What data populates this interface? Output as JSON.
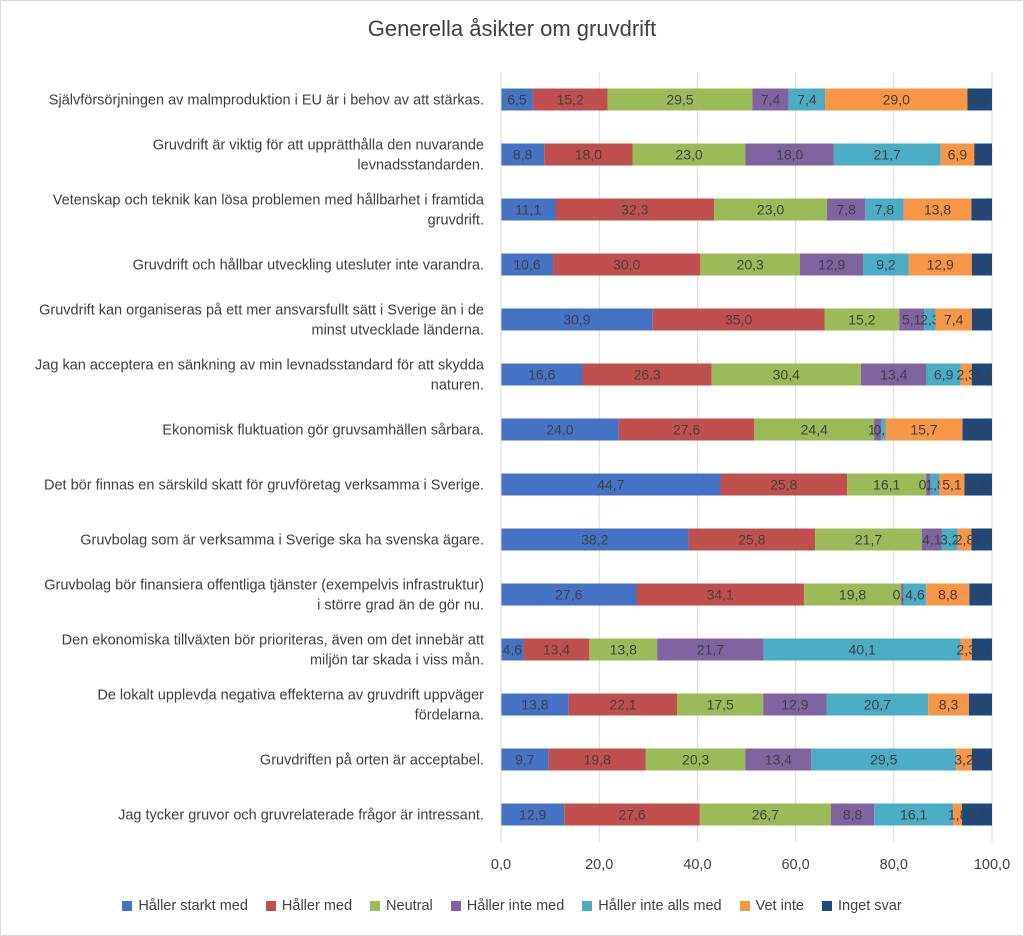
{
  "chart_data": {
    "type": "bar",
    "orientation": "horizontal",
    "stacked": true,
    "title": "Generella åsikter om gruvdrift",
    "xlim": [
      0,
      100
    ],
    "x_ticks": [
      "0,0",
      "20,0",
      "40,0",
      "60,0",
      "80,0",
      "100,0"
    ],
    "gridlines": true,
    "legend_position": "bottom",
    "categories": [
      [
        "Självförsörjningen av malmproduktion i EU är i behov av att stärkas."
      ],
      [
        "Gruvdrift är viktig för att upprätthålla den nuvarande",
        "levnadsstandarden."
      ],
      [
        "Vetenskap och teknik kan lösa problemen med hållbarhet i framtida",
        "gruvdrift."
      ],
      [
        "Gruvdrift och hållbar utveckling utesluter inte varandra."
      ],
      [
        "Gruvdrift kan organiseras på ett mer ansvarsfullt sätt i Sverige än i de",
        "minst utvecklade länderna."
      ],
      [
        "Jag kan acceptera en sänkning av min levnadsstandard för att skydda",
        "naturen."
      ],
      [
        "Ekonomisk fluktuation gör gruvsamhällen sårbara."
      ],
      [
        "Det bör finnas en särskild skatt för gruvföretag verksamma i Sverige."
      ],
      [
        "Gruvbolag som är verksamma i Sverige ska ha svenska ägare."
      ],
      [
        "Gruvbolag bör finansiera offentliga tjänster (exempelvis infrastruktur)",
        "i större grad än de gör nu."
      ],
      [
        "Den ekonomiska tillväxten bör prioriteras, även om det innebär att",
        "miljön tar skada i viss mån."
      ],
      [
        "De lokalt upplevda negativa effekterna av gruvdrift uppväger",
        "fördelarna."
      ],
      [
        "Gruvdriften på orten är acceptabel."
      ],
      [
        "Jag tycker gruvor och gruvrelaterade frågor är intressant."
      ]
    ],
    "series": [
      {
        "name": "Håller starkt med",
        "color": "#4472C4",
        "values": [
          6.5,
          8.8,
          11.1,
          10.6,
          30.9,
          16.6,
          24.0,
          44.7,
          38.2,
          27.6,
          4.6,
          13.8,
          9.7,
          12.9
        ],
        "labels": [
          "6,5",
          "8,8",
          "11,1",
          "10,6",
          "30,9",
          "16,6",
          "24,0",
          "44,7",
          "38,2",
          "27,6",
          "4,6",
          "13,8",
          "9,7",
          "12,9"
        ]
      },
      {
        "name": "Håller med",
        "color": "#C0504D",
        "values": [
          15.2,
          18.0,
          32.3,
          30.0,
          35.0,
          26.3,
          27.6,
          25.8,
          25.8,
          34.1,
          13.4,
          22.1,
          19.8,
          27.6
        ],
        "labels": [
          "15,2",
          "18,0",
          "32,3",
          "30,0",
          "35,0",
          "26,3",
          "27,6",
          "25,8",
          "25,8",
          "34,1",
          "13,4",
          "22,1",
          "19,8",
          "27,6"
        ]
      },
      {
        "name": "Neutral",
        "color": "#9BBB59",
        "values": [
          29.5,
          23.0,
          23.0,
          20.3,
          15.2,
          30.4,
          24.4,
          16.1,
          21.7,
          19.8,
          13.8,
          17.5,
          20.3,
          26.7
        ],
        "labels": [
          "29,5",
          "23,0",
          "23,0",
          "20,3",
          "15,2",
          "30,4",
          "24,4",
          "16,1",
          "21,7",
          "19,8",
          "13,8",
          "17,5",
          "20,3",
          "26,7"
        ]
      },
      {
        "name": "Håller inte med",
        "color": "#8064A2",
        "values": [
          7.4,
          18.0,
          7.8,
          12.9,
          5.1,
          13.4,
          1.4,
          0.9,
          4.1,
          0.5,
          21.7,
          12.9,
          13.4,
          8.8
        ],
        "labels": [
          "7,4",
          "18,0",
          "7,8",
          "12,9",
          "5,1",
          "13,4",
          "1,4",
          "0,9",
          "4,1",
          "0,5",
          "21,7",
          "12,9",
          "13,4",
          "8,8"
        ]
      },
      {
        "name": "Håller inte alls med",
        "color": "#4BACC6",
        "values": [
          7.4,
          21.7,
          7.8,
          9.2,
          2.3,
          6.9,
          0.9,
          1.8,
          3.2,
          4.6,
          40.1,
          20.7,
          29.5,
          16.1
        ],
        "labels": [
          "7,4",
          "21,7",
          "7,8",
          "9,2",
          "2,3",
          "6,9",
          "0,9",
          "1,8",
          "3,2",
          "4,6",
          "40,1",
          "20,7",
          "29,5",
          "16,1"
        ]
      },
      {
        "name": "Vet inte",
        "color": "#F79646",
        "values": [
          29.0,
          6.9,
          13.8,
          12.9,
          7.4,
          2.3,
          15.7,
          5.1,
          2.8,
          8.8,
          2.3,
          8.3,
          3.2,
          1.8
        ],
        "labels": [
          "29,0",
          "6,9",
          "13,8",
          "12,9",
          "7,4",
          "2,3",
          "15,7",
          "5,1",
          "2,8",
          "8,8",
          "2,3",
          "8,3",
          "3,2",
          "1,8"
        ]
      },
      {
        "name": "Inget svar",
        "color": "#1F497D",
        "values": [
          5.1,
          3.7,
          4.2,
          4.2,
          4.2,
          4.1,
          6.0,
          5.6,
          4.2,
          4.6,
          4.1,
          4.7,
          4.1,
          6.1
        ],
        "labels": [
          "5,1",
          "3,7",
          "4,2",
          "4,2",
          "4,2",
          "4,1",
          "6,0",
          "5,6",
          "4,2",
          "4,6",
          "4,1",
          "4,7",
          "4,1",
          "6,1"
        ]
      }
    ]
  }
}
